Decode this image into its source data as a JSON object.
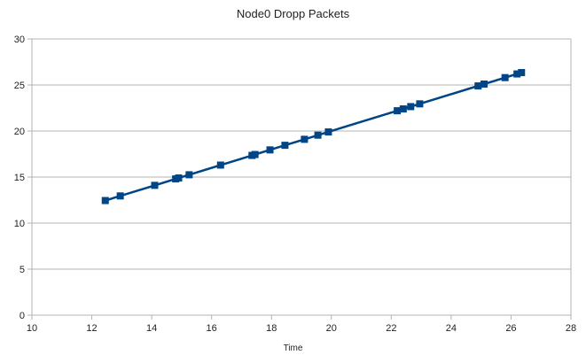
{
  "chart_data": {
    "type": "scatter",
    "title": "Node0 Dropp Packets",
    "xlabel": "Time",
    "ylabel": "",
    "xlim": [
      10,
      28
    ],
    "ylim": [
      0,
      30
    ],
    "x_ticks": [
      "10",
      "12",
      "14",
      "16",
      "18",
      "20",
      "22",
      "24",
      "26",
      "28"
    ],
    "y_ticks": [
      "0",
      "5",
      "10",
      "15",
      "20",
      "25",
      "30"
    ],
    "grid": "horizontal",
    "legend": "none",
    "line_style": "lines-and-markers",
    "marker": "square",
    "series_color": "#004586",
    "series": [
      {
        "points": [
          {
            "x": 12.45,
            "y": 12.45
          },
          {
            "x": 12.95,
            "y": 12.95
          },
          {
            "x": 14.1,
            "y": 14.1
          },
          {
            "x": 14.8,
            "y": 14.8
          },
          {
            "x": 14.9,
            "y": 14.9
          },
          {
            "x": 15.25,
            "y": 15.25
          },
          {
            "x": 16.3,
            "y": 16.3
          },
          {
            "x": 17.35,
            "y": 17.35
          },
          {
            "x": 17.45,
            "y": 17.45
          },
          {
            "x": 17.95,
            "y": 17.95
          },
          {
            "x": 18.45,
            "y": 18.45
          },
          {
            "x": 19.1,
            "y": 19.1
          },
          {
            "x": 19.55,
            "y": 19.55
          },
          {
            "x": 19.9,
            "y": 19.9
          },
          {
            "x": 22.2,
            "y": 22.2
          },
          {
            "x": 22.4,
            "y": 22.4
          },
          {
            "x": 22.65,
            "y": 22.65
          },
          {
            "x": 22.95,
            "y": 22.95
          },
          {
            "x": 24.9,
            "y": 24.9
          },
          {
            "x": 25.1,
            "y": 25.1
          },
          {
            "x": 25.8,
            "y": 25.8
          },
          {
            "x": 26.2,
            "y": 26.2
          },
          {
            "x": 26.35,
            "y": 26.35
          }
        ]
      }
    ]
  }
}
